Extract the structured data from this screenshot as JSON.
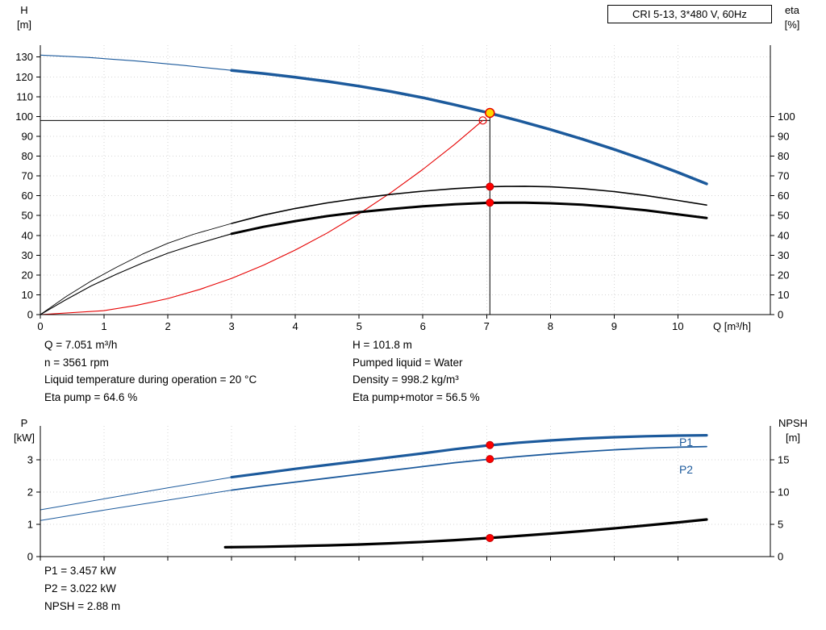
{
  "annotations": {
    "left": [
      "Q = 7.051 m³/h",
      "n = 3561 rpm",
      "Liquid temperature during operation = 20 °C",
      "Eta pump = 64.6 %"
    ],
    "right": [
      "H = 101.8 m",
      "Pumped liquid = Water",
      "Density = 998.2 kg/m³",
      "Eta pump+motor = 56.5 %"
    ],
    "power": [
      "P1 = 3.457 kW",
      "P2 = 3.022 kW",
      "NPSH = 2.88 m"
    ]
  },
  "colors": {
    "curve_blue": "#1c5a9c",
    "red": "#e60000",
    "duty_yellow": "#ffd800",
    "black": "#000000"
  },
  "chart_data": [
    {
      "type": "line",
      "title": "CRI 5-13, 3*480 V, 60Hz",
      "x_axis": {
        "label": "Q [m³/h]",
        "min": 0,
        "max": 11.45,
        "ticks": [
          0,
          1,
          2,
          3,
          4,
          5,
          6,
          7,
          8,
          9,
          10
        ]
      },
      "y_left": {
        "name": "H",
        "unit": "[m]",
        "min": 0,
        "max": 136,
        "ticks": [
          0,
          10,
          20,
          30,
          40,
          50,
          60,
          70,
          80,
          90,
          100,
          110,
          120,
          130
        ]
      },
      "y_right": {
        "name": "eta",
        "unit": "[%]",
        "min": 0,
        "max": 136,
        "ticks": [
          0,
          10,
          20,
          30,
          40,
          50,
          60,
          70,
          80,
          90,
          100
        ]
      },
      "duty_point": {
        "Q": 7.051,
        "H": 101.8,
        "eta_pump": 64.6,
        "eta_pump_motor": 56.5
      },
      "guides": [
        {
          "type": "hline",
          "y": 98,
          "x1": 0,
          "x2": 7.051
        },
        {
          "type": "vline",
          "x": 7.051,
          "y1": 0,
          "y2": 101.8
        }
      ],
      "series": [
        {
          "id": "system-curve",
          "axis": "left",
          "color": "#e60000",
          "width": 1.1,
          "points": [
            [
              0,
              0
            ],
            [
              1,
              2
            ],
            [
              1.5,
              4.6
            ],
            [
              2,
              8.1
            ],
            [
              2.5,
              12.7
            ],
            [
              3,
              18.3
            ],
            [
              3.5,
              24.9
            ],
            [
              4,
              32.6
            ],
            [
              4.5,
              41.2
            ],
            [
              5,
              50.9
            ],
            [
              5.5,
              61.6
            ],
            [
              6,
              73.3
            ],
            [
              6.5,
              86
            ],
            [
              6.94,
              98
            ]
          ]
        },
        {
          "id": "eta-pump-thin",
          "axis": "right",
          "color": "#000000",
          "width": 0.9,
          "points": [
            [
              0,
              0
            ],
            [
              0.4,
              9
            ],
            [
              0.8,
              17
            ],
            [
              1.2,
              24
            ],
            [
              1.6,
              30.5
            ],
            [
              2,
              36
            ],
            [
              2.4,
              40.5
            ],
            [
              3,
              46
            ]
          ]
        },
        {
          "id": "eta-pump",
          "axis": "right",
          "color": "#000000",
          "width": 1.6,
          "points": [
            [
              3,
              46
            ],
            [
              3.5,
              50.2
            ],
            [
              4,
              53.6
            ],
            [
              4.5,
              56.4
            ],
            [
              5,
              58.7
            ],
            [
              5.5,
              60.7
            ],
            [
              6,
              62.3
            ],
            [
              6.5,
              63.6
            ],
            [
              7,
              64.5
            ],
            [
              7.3,
              64.7
            ],
            [
              7.6,
              64.8
            ],
            [
              8,
              64.5
            ],
            [
              8.5,
              63.6
            ],
            [
              9,
              62.1
            ],
            [
              9.5,
              60.1
            ],
            [
              10,
              57.6
            ],
            [
              10.45,
              55.3
            ]
          ]
        },
        {
          "id": "eta-pump-motor-thin",
          "axis": "right",
          "color": "#000000",
          "width": 1.1,
          "points": [
            [
              0,
              0
            ],
            [
              0.4,
              7.5
            ],
            [
              0.8,
              14.5
            ],
            [
              1.2,
              20.5
            ],
            [
              1.6,
              26
            ],
            [
              2,
              31
            ],
            [
              2.4,
              35.2
            ],
            [
              3,
              40.8
            ]
          ]
        },
        {
          "id": "eta-pump-motor",
          "axis": "right",
          "color": "#000000",
          "width": 3,
          "points": [
            [
              3,
              40.8
            ],
            [
              3.5,
              44.3
            ],
            [
              4,
              47.2
            ],
            [
              4.5,
              49.7
            ],
            [
              5,
              51.7
            ],
            [
              5.5,
              53.3
            ],
            [
              6,
              54.7
            ],
            [
              6.5,
              55.7
            ],
            [
              7,
              56.4
            ],
            [
              7.3,
              56.5
            ],
            [
              7.6,
              56.5
            ],
            [
              8,
              56.2
            ],
            [
              8.5,
              55.5
            ],
            [
              9,
              54.2
            ],
            [
              9.5,
              52.6
            ],
            [
              10,
              50.6
            ],
            [
              10.45,
              48.8
            ]
          ]
        },
        {
          "id": "h-curve-thin",
          "axis": "left",
          "color": "#1c5a9c",
          "width": 1.1,
          "points": [
            [
              0,
              131
            ],
            [
              0.75,
              129.8
            ],
            [
              1.5,
              128
            ],
            [
              2.25,
              125.8
            ],
            [
              3,
              123.3
            ]
          ]
        },
        {
          "id": "h-curve",
          "axis": "left",
          "color": "#1c5a9c",
          "width": 3.5,
          "points": [
            [
              3,
              123.3
            ],
            [
              3.5,
              121.7
            ],
            [
              4,
              119.8
            ],
            [
              4.5,
              117.7
            ],
            [
              5,
              115.3
            ],
            [
              5.5,
              112.6
            ],
            [
              6,
              109.5
            ],
            [
              6.5,
              105.9
            ],
            [
              7,
              102.1
            ],
            [
              7.5,
              97.9
            ],
            [
              8,
              93.4
            ],
            [
              8.5,
              88.6
            ],
            [
              9,
              83.4
            ],
            [
              9.5,
              77.8
            ],
            [
              10,
              71.8
            ],
            [
              10.45,
              66
            ]
          ]
        }
      ],
      "markers": [
        {
          "id": "duty-point-open-circle",
          "axis": "left",
          "x": 6.94,
          "y": 98,
          "r": 4.5,
          "fill": "none",
          "stroke": "#e60000",
          "stroke_width": 1.2
        },
        {
          "id": "eta-pump-point",
          "axis": "right",
          "x": 7.051,
          "y": 64.6,
          "r": 4.5,
          "fill": "#ff0000",
          "stroke": "#c00000",
          "stroke_width": 1
        },
        {
          "id": "eta-pump-motor-point",
          "axis": "right",
          "x": 7.051,
          "y": 56.5,
          "r": 4.5,
          "fill": "#ff0000",
          "stroke": "#c00000",
          "stroke_width": 1
        },
        {
          "id": "duty-point",
          "axis": "left",
          "x": 7.051,
          "y": 101.8,
          "r": 5.5,
          "fill": "#ffd800",
          "stroke": "#e60000",
          "stroke_width": 1.5
        }
      ],
      "labels": []
    },
    {
      "type": "line",
      "title": "",
      "x_axis": {
        "label": "",
        "min": 0,
        "max": 11.45,
        "ticks": [
          0,
          1,
          2,
          3,
          4,
          5,
          6,
          7,
          8,
          9,
          10
        ],
        "show_tick_labels": false
      },
      "y_left": {
        "name": "P",
        "unit": "[kW]",
        "min": 0,
        "max": 4.05,
        "ticks": [
          0,
          1,
          2,
          3
        ]
      },
      "y_right": {
        "name": "NPSH",
        "unit": "[m]",
        "min": 0,
        "max": 20.25,
        "ticks": [
          0,
          5,
          10,
          15
        ]
      },
      "duty_point": {
        "Q": 7.051,
        "P1": 3.457,
        "P2": 3.022,
        "NPSH": 2.88
      },
      "guides": [],
      "series": [
        {
          "id": "p2-thin",
          "axis": "left",
          "color": "#1c5a9c",
          "width": 1,
          "points": [
            [
              0,
              1.12
            ],
            [
              1,
              1.44
            ],
            [
              2,
              1.75
            ],
            [
              3,
              2.06
            ]
          ]
        },
        {
          "id": "p2",
          "axis": "left",
          "color": "#1c5a9c",
          "width": 1.8,
          "points": [
            [
              3,
              2.06
            ],
            [
              3.5,
              2.19
            ],
            [
              4,
              2.31
            ],
            [
              4.5,
              2.43
            ],
            [
              5,
              2.55
            ],
            [
              5.5,
              2.67
            ],
            [
              6,
              2.79
            ],
            [
              6.5,
              2.91
            ],
            [
              7,
              3.01
            ],
            [
              7.5,
              3.1
            ],
            [
              8,
              3.18
            ],
            [
              8.5,
              3.25
            ],
            [
              9,
              3.31
            ],
            [
              9.5,
              3.36
            ],
            [
              10,
              3.39
            ],
            [
              10.45,
              3.41
            ]
          ]
        },
        {
          "id": "p1-thin",
          "axis": "left",
          "color": "#1c5a9c",
          "width": 1,
          "points": [
            [
              0,
              1.45
            ],
            [
              1,
              1.79
            ],
            [
              2,
              2.13
            ],
            [
              3,
              2.46
            ]
          ]
        },
        {
          "id": "p1",
          "axis": "left",
          "color": "#1c5a9c",
          "width": 3.2,
          "points": [
            [
              3,
              2.46
            ],
            [
              3.5,
              2.59
            ],
            [
              4,
              2.72
            ],
            [
              4.5,
              2.84
            ],
            [
              5,
              2.96
            ],
            [
              5.5,
              3.08
            ],
            [
              6,
              3.2
            ],
            [
              6.5,
              3.33
            ],
            [
              7,
              3.44
            ],
            [
              7.5,
              3.53
            ],
            [
              8,
              3.6
            ],
            [
              8.5,
              3.66
            ],
            [
              9,
              3.7
            ],
            [
              9.5,
              3.73
            ],
            [
              10,
              3.75
            ],
            [
              10.45,
              3.76
            ]
          ]
        },
        {
          "id": "npsh",
          "axis": "right",
          "color": "#000000",
          "width": 3.2,
          "points": [
            [
              2.9,
              1.45
            ],
            [
              3.5,
              1.52
            ],
            [
              4,
              1.62
            ],
            [
              4.5,
              1.74
            ],
            [
              5,
              1.88
            ],
            [
              5.5,
              2.06
            ],
            [
              6,
              2.28
            ],
            [
              6.5,
              2.55
            ],
            [
              7,
              2.86
            ],
            [
              7.5,
              3.2
            ],
            [
              8,
              3.56
            ],
            [
              8.5,
              3.95
            ],
            [
              9,
              4.37
            ],
            [
              9.5,
              4.82
            ],
            [
              10,
              5.3
            ],
            [
              10.45,
              5.75
            ]
          ]
        }
      ],
      "markers": [
        {
          "id": "p1-point",
          "axis": "left",
          "x": 7.051,
          "y": 3.457,
          "r": 4.5,
          "fill": "#ff0000",
          "stroke": "#c00000",
          "stroke_width": 1
        },
        {
          "id": "p2-point",
          "axis": "left",
          "x": 7.051,
          "y": 3.022,
          "r": 4.5,
          "fill": "#ff0000",
          "stroke": "#c00000",
          "stroke_width": 1
        },
        {
          "id": "npsh-point",
          "axis": "right",
          "x": 7.051,
          "y": 2.88,
          "r": 4.5,
          "fill": "#ff0000",
          "stroke": "#c00000",
          "stroke_width": 1
        }
      ],
      "labels": [
        {
          "text": "P1",
          "x": 10.02,
          "y": 3.42,
          "axis": "left",
          "color": "#1c5a9c"
        },
        {
          "text": "P2",
          "x": 10.02,
          "y": 2.58,
          "axis": "left",
          "color": "#1c5a9c"
        }
      ]
    }
  ]
}
